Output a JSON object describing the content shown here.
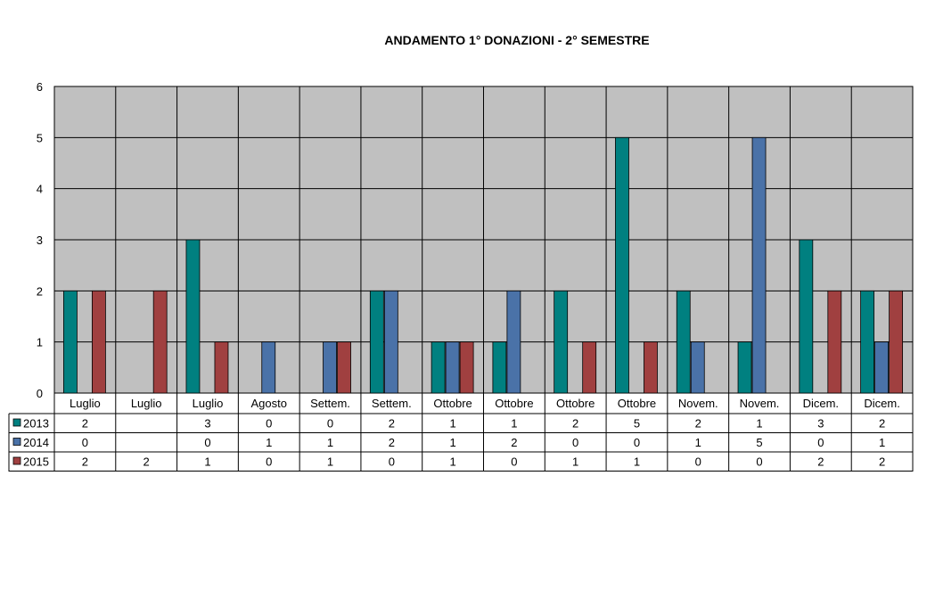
{
  "chart_data": {
    "type": "bar",
    "title": "ANDAMENTO 1° DONAZIONI  -  2° SEMESTRE",
    "categories": [
      "Luglio",
      "Luglio",
      "Luglio",
      "Agosto",
      "Settem.",
      "Settem.",
      "Ottobre",
      "Ottobre",
      "Ottobre",
      "Ottobre",
      "Novem.",
      "Novem.",
      "Dicem.",
      "Dicem."
    ],
    "series": [
      {
        "name": "2013",
        "color": "#008080",
        "values": [
          2,
          null,
          3,
          0,
          0,
          2,
          1,
          1,
          2,
          5,
          2,
          1,
          3,
          2
        ]
      },
      {
        "name": "2014",
        "color": "#4a72a8",
        "values": [
          0,
          null,
          0,
          1,
          1,
          2,
          1,
          2,
          0,
          0,
          1,
          5,
          0,
          1
        ]
      },
      {
        "name": "2015",
        "color": "#a04040",
        "values": [
          2,
          2,
          1,
          0,
          1,
          0,
          1,
          0,
          1,
          1,
          0,
          0,
          2,
          2
        ]
      }
    ],
    "ylim": [
      0,
      6
    ],
    "yticks": [
      "0",
      "1",
      "2",
      "3",
      "4",
      "5",
      "6"
    ],
    "grid": true,
    "plot_background": "#c0c0c0",
    "legend": "data-table"
  }
}
